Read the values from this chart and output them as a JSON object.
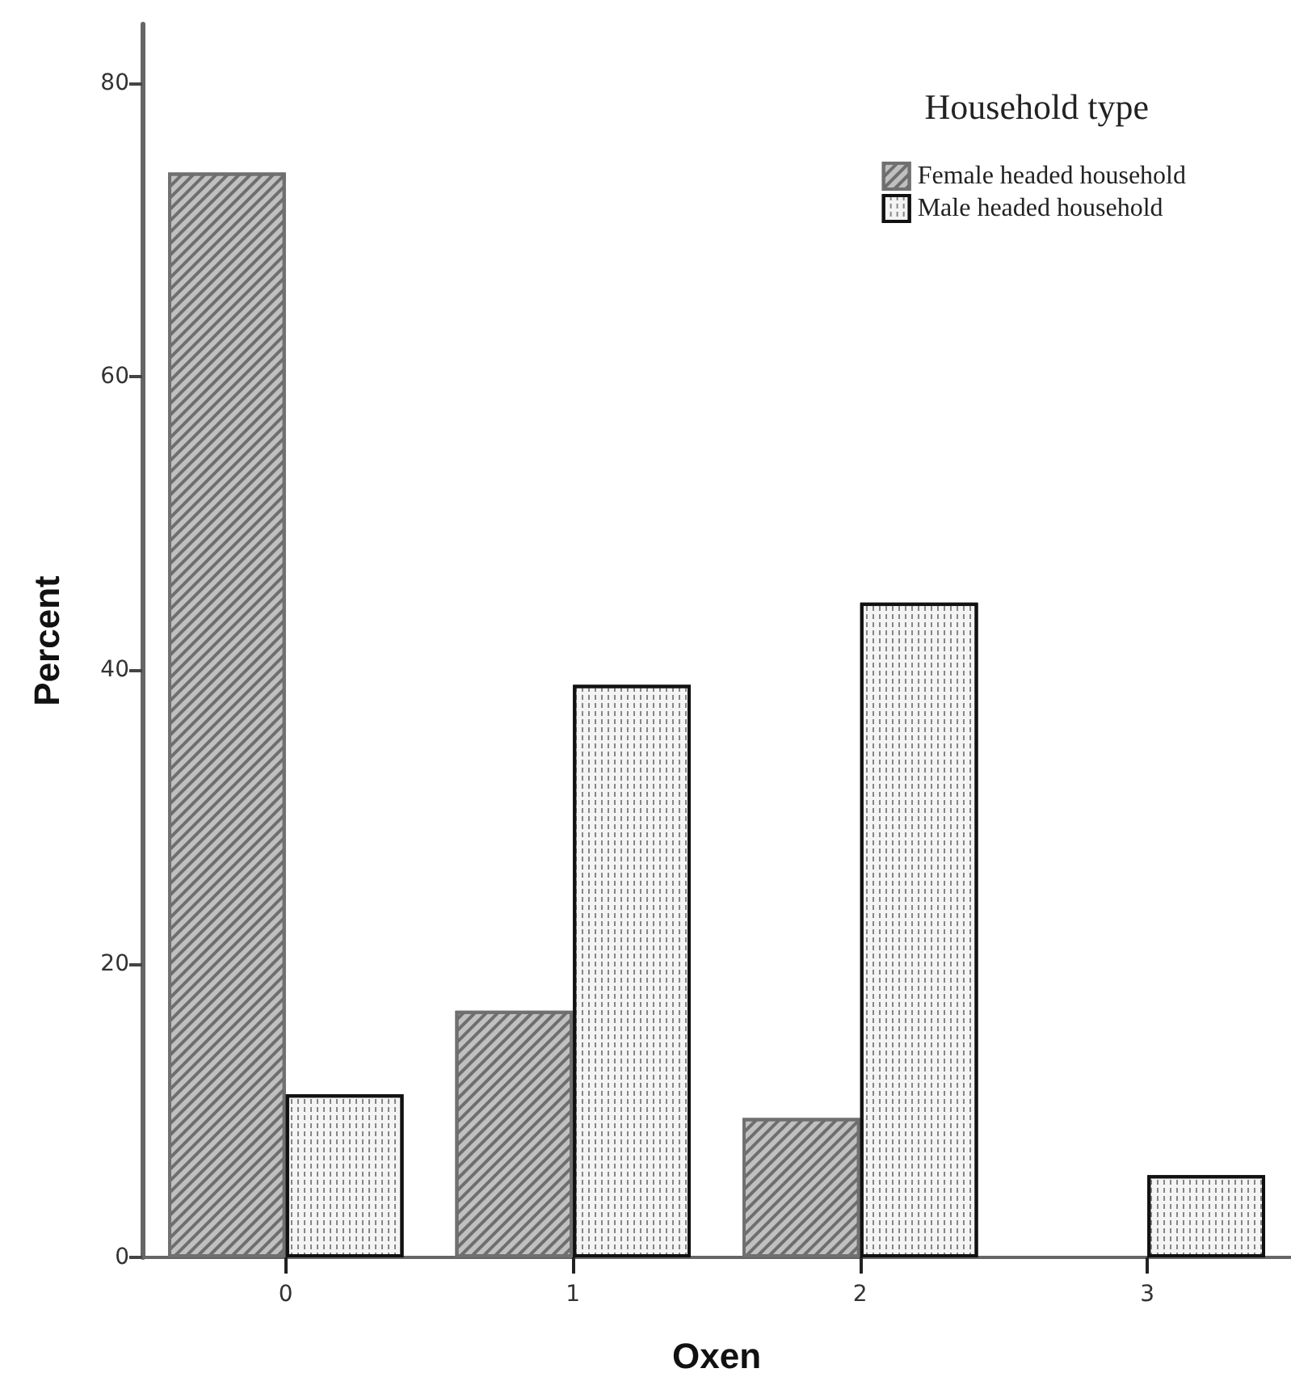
{
  "chart_data": {
    "type": "bar",
    "xlabel": "Oxen",
    "ylabel": "Percent",
    "legend_title": "Household type",
    "categories": [
      "0",
      "1",
      "2",
      "3"
    ],
    "series": [
      {
        "name": "Female headed household",
        "color": "#c0c0c0",
        "values": [
          73.9,
          16.8,
          9.5,
          0
        ]
      },
      {
        "name": "Male headed household",
        "color": "#f4f4f4",
        "values": [
          11.1,
          39.0,
          44.6,
          5.6
        ]
      }
    ],
    "ylim": [
      0,
      84
    ],
    "yticks": [
      0,
      20,
      40,
      60,
      80
    ],
    "grid": false,
    "legend": "top right"
  }
}
